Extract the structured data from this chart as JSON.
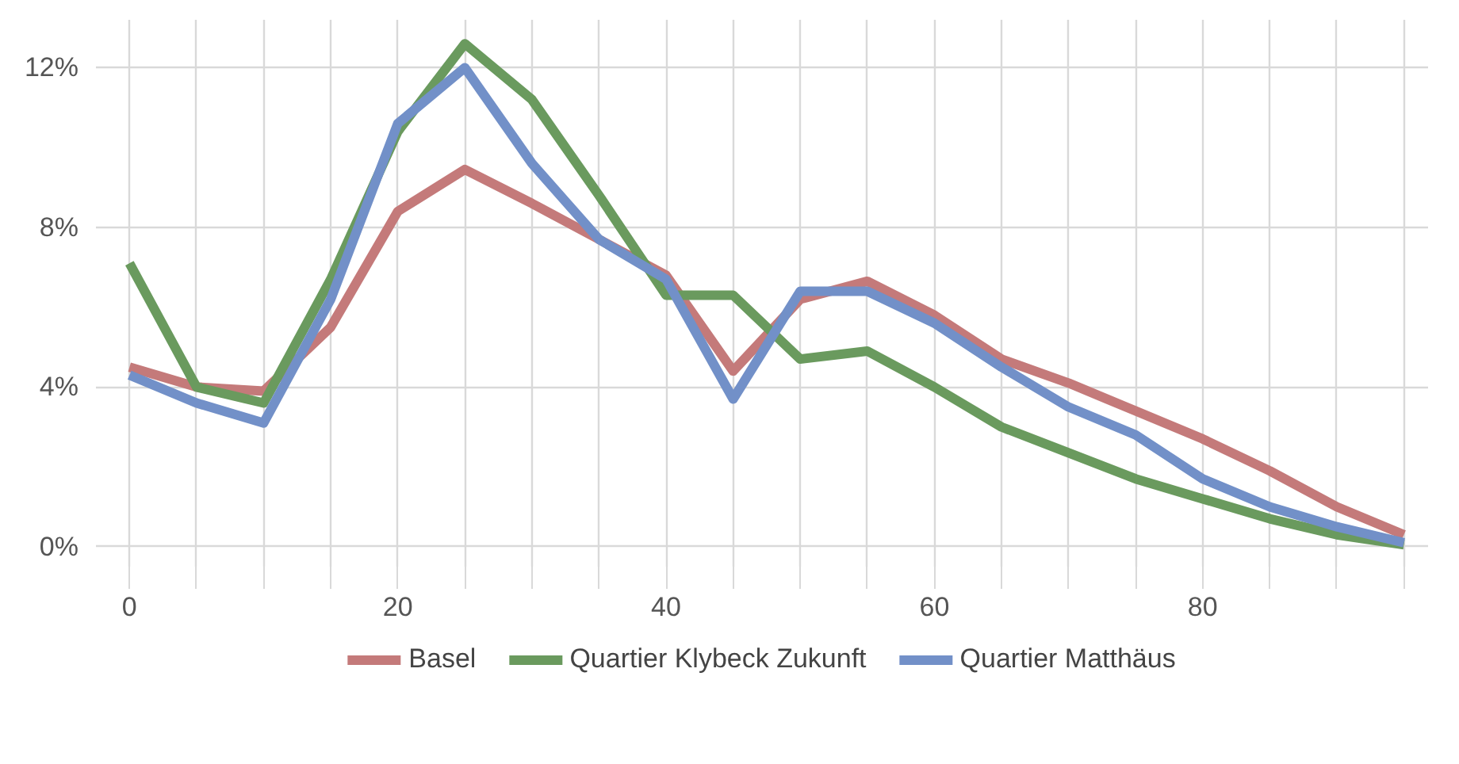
{
  "chart_data": {
    "type": "line",
    "x": [
      0,
      5,
      10,
      15,
      20,
      25,
      30,
      35,
      40,
      45,
      50,
      55,
      60,
      65,
      70,
      75,
      80,
      85,
      90,
      95
    ],
    "series": [
      {
        "name": "Basel",
        "color": "#c47a7a",
        "values": [
          4.5,
          4.0,
          3.9,
          5.5,
          8.4,
          9.45,
          8.6,
          7.7,
          6.8,
          4.4,
          6.2,
          6.65,
          5.8,
          4.7,
          4.1,
          3.4,
          2.7,
          1.9,
          1.0,
          0.3
        ]
      },
      {
        "name": "Quartier Klybeck Zukunft",
        "color": "#6a9a5e",
        "values": [
          7.1,
          4.0,
          3.6,
          6.7,
          10.4,
          12.6,
          11.2,
          8.8,
          6.3,
          6.3,
          4.7,
          4.9,
          4.0,
          3.0,
          2.35,
          1.7,
          1.2,
          0.7,
          0.3,
          0.05
        ]
      },
      {
        "name": "Quartier Matthäus",
        "color": "#7290c8",
        "values": [
          4.3,
          3.6,
          3.1,
          6.2,
          10.6,
          12.0,
          9.6,
          7.7,
          6.7,
          3.7,
          6.4,
          6.4,
          5.6,
          4.5,
          3.5,
          2.8,
          1.7,
          1.0,
          0.5,
          0.1
        ]
      }
    ],
    "xlim": [
      -2.5,
      96.8
    ],
    "ylim": [
      -0.5,
      13.2
    ],
    "xticks": [
      0,
      {
        "value": 5,
        "label": null
      },
      20,
      40,
      60,
      80
    ],
    "yticks": [
      {
        "value": 0,
        "label": "0%"
      },
      {
        "value": 4,
        "label": "4%"
      },
      {
        "value": 8,
        "label": "8%"
      },
      {
        "value": 12,
        "label": "12%"
      }
    ],
    "grid": true,
    "legend": "bottom",
    "line_style": "solid",
    "marker": "none"
  }
}
